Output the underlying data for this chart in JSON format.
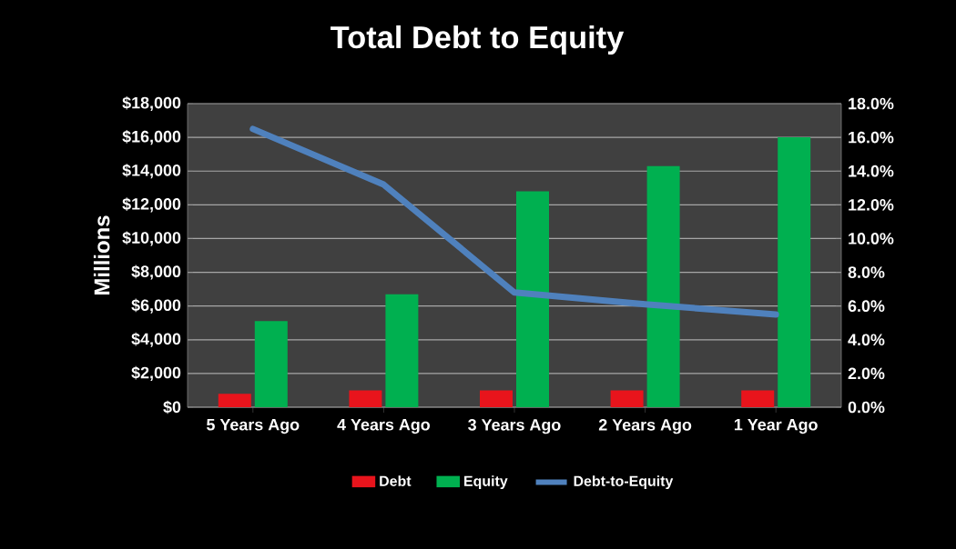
{
  "chart_data": {
    "type": "bar",
    "title": "Total Debt to Equity",
    "ylabel": "Millions",
    "categories": [
      "5 Years Ago",
      "4 Years Ago",
      "3 Years Ago",
      "2 Years Ago",
      "1 Year Ago"
    ],
    "series": [
      {
        "name": "Debt",
        "color": "#e8141c",
        "values": [
          800,
          1000,
          1000,
          1000,
          1000
        ]
      },
      {
        "name": "Equity",
        "color": "#00b050",
        "values": [
          5100,
          6700,
          12800,
          14300,
          16000
        ]
      },
      {
        "name": "Debt-to-Equity",
        "type": "line",
        "axis": "y2",
        "color": "#4f81bd",
        "values": [
          16.5,
          13.2,
          6.8,
          6.1,
          5.5
        ]
      }
    ],
    "ylim": [
      0,
      18000
    ],
    "yticks": [
      {
        "value": 0,
        "label": "$0"
      },
      {
        "value": 2000,
        "label": "$2,000"
      },
      {
        "value": 4000,
        "label": "$4,000"
      },
      {
        "value": 6000,
        "label": "$6,000"
      },
      {
        "value": 8000,
        "label": "$8,000"
      },
      {
        "value": 10000,
        "label": "$10,000"
      },
      {
        "value": 12000,
        "label": "$12,000"
      },
      {
        "value": 14000,
        "label": "$14,000"
      },
      {
        "value": 16000,
        "label": "$16,000"
      },
      {
        "value": 18000,
        "label": "$18,000"
      }
    ],
    "y2lim": [
      0,
      18
    ],
    "y2ticks": [
      {
        "value": 0,
        "label": "0.0%"
      },
      {
        "value": 2,
        "label": "2.0%"
      },
      {
        "value": 4,
        "label": "4.0%"
      },
      {
        "value": 6,
        "label": "6.0%"
      },
      {
        "value": 8,
        "label": "8.0%"
      },
      {
        "value": 10,
        "label": "10.0%"
      },
      {
        "value": 12,
        "label": "12.0%"
      },
      {
        "value": 14,
        "label": "14.0%"
      },
      {
        "value": 16,
        "label": "16.0%"
      },
      {
        "value": 18,
        "label": "18.0%"
      }
    ],
    "grid": "y",
    "legend": "bottom",
    "marker": "none",
    "line_style": "solid"
  }
}
